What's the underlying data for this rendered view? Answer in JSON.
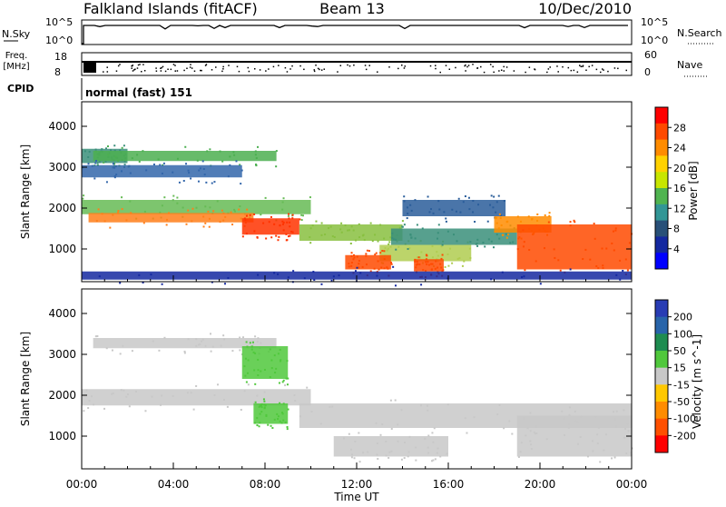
{
  "header": {
    "station": "Falkland Islands (fitACF)",
    "beam": "Beam 13",
    "date": "10/Dec/2010"
  },
  "top_panels": {
    "nsky_label": "N.Sky",
    "nsearch_label": "N.Search",
    "nsky_ticks": [
      "10^5",
      "10^0"
    ],
    "freq_label_line1": "Freq.",
    "freq_label_line2": "[MHz]",
    "freq_ticks": [
      "18",
      "8"
    ],
    "nave_label": "Nave",
    "nave_ticks": [
      "60",
      "0"
    ],
    "cpid_label": "CPID",
    "cpid_text": "normal (fast) 151"
  },
  "x_axis": {
    "ticks": [
      "00:00",
      "04:00",
      "08:00",
      "12:00",
      "16:00",
      "20:00",
      "00:00"
    ],
    "label": "Time UT"
  },
  "chart_data": [
    {
      "type": "heatmap",
      "name": "power",
      "ylabel": "Slant Range [km]",
      "yticks": [
        1000,
        2000,
        3000,
        4000
      ],
      "ylim": [
        200,
        4600
      ],
      "xlim_hours": [
        0,
        24
      ],
      "colorbar_label": "Power [dB]",
      "colorbar_ticks": [
        "28",
        "24",
        "20",
        "16",
        "12",
        "8",
        "4"
      ],
      "colorbar_colors": [
        "#ff0000",
        "#ff4a00",
        "#ff8c00",
        "#ffd200",
        "#c8e600",
        "#50b450",
        "#329696",
        "#285078",
        "#1428a0",
        "#0000ff"
      ],
      "bands": [
        {
          "x0": 0.0,
          "x1": 2.0,
          "y0": 3100,
          "y1": 3450,
          "color": "#3a8f7a"
        },
        {
          "x0": 0.5,
          "x1": 8.5,
          "y0": 3150,
          "y1": 3400,
          "color": "#4caf50"
        },
        {
          "x0": 0.0,
          "x1": 7.0,
          "y0": 2750,
          "y1": 3050,
          "color": "#3366aa"
        },
        {
          "x0": 0.0,
          "x1": 10.0,
          "y0": 1850,
          "y1": 2200,
          "color": "#66bb55"
        },
        {
          "x0": 0.3,
          "x1": 7.5,
          "y0": 1650,
          "y1": 1880,
          "color": "#ff7f1a"
        },
        {
          "x0": 7.0,
          "x1": 9.5,
          "y0": 1350,
          "y1": 1750,
          "color": "#ff3300"
        },
        {
          "x0": 9.5,
          "x1": 14.0,
          "y0": 1200,
          "y1": 1600,
          "color": "#88c040"
        },
        {
          "x0": 13.0,
          "x1": 17.0,
          "y0": 700,
          "y1": 1100,
          "color": "#b0cc50"
        },
        {
          "x0": 11.5,
          "x1": 13.5,
          "y0": 500,
          "y1": 850,
          "color": "#ff4a00"
        },
        {
          "x0": 14.5,
          "x1": 15.8,
          "y0": 450,
          "y1": 750,
          "color": "#ff4a00"
        },
        {
          "x0": 13.5,
          "x1": 19.0,
          "y0": 1100,
          "y1": 1500,
          "color": "#3a8f7a"
        },
        {
          "x0": 14.0,
          "x1": 18.5,
          "y0": 1800,
          "y1": 2200,
          "color": "#2a5d9a"
        },
        {
          "x0": 18.0,
          "x1": 20.5,
          "y0": 1400,
          "y1": 1800,
          "color": "#ff8c00"
        },
        {
          "x0": 19.0,
          "x1": 24.0,
          "y0": 500,
          "y1": 1600,
          "color": "#ff4a00"
        },
        {
          "x0": 0.0,
          "x1": 24.0,
          "y0": 250,
          "y1": 450,
          "color": "#1428a0"
        }
      ]
    },
    {
      "type": "heatmap",
      "name": "velocity",
      "ylabel": "Slant Range [km]",
      "yticks": [
        1000,
        2000,
        3000,
        4000
      ],
      "ylim": [
        200,
        4600
      ],
      "xlim_hours": [
        0,
        24
      ],
      "colorbar_label": "Velocity [m s^-1]",
      "colorbar_ticks": [
        "200",
        "100",
        "50",
        "15",
        "-15",
        "-50",
        "-100",
        "-200"
      ],
      "colorbar_colors": [
        "#283cb4",
        "#2864aa",
        "#1e8c50",
        "#50c83c",
        "#c8c8c8",
        "#ffc800",
        "#ff8c00",
        "#ff5000",
        "#ff0000"
      ],
      "bands": [
        {
          "x0": 0.5,
          "x1": 8.5,
          "y0": 3150,
          "y1": 3400,
          "color": "#c8c8c8"
        },
        {
          "x0": 0.0,
          "x1": 10.0,
          "y0": 1750,
          "y1": 2150,
          "color": "#c8c8c8"
        },
        {
          "x0": 7.0,
          "x1": 9.0,
          "y0": 2400,
          "y1": 3200,
          "color": "#50c83c"
        },
        {
          "x0": 7.5,
          "x1": 9.0,
          "y0": 1300,
          "y1": 1800,
          "color": "#50c83c"
        },
        {
          "x0": 9.5,
          "x1": 24.0,
          "y0": 1200,
          "y1": 1800,
          "color": "#c8c8c8"
        },
        {
          "x0": 11.0,
          "x1": 16.0,
          "y0": 500,
          "y1": 1000,
          "color": "#c8c8c8"
        },
        {
          "x0": 19.0,
          "x1": 24.0,
          "y0": 500,
          "y1": 1500,
          "color": "#c8c8c8"
        }
      ]
    }
  ]
}
